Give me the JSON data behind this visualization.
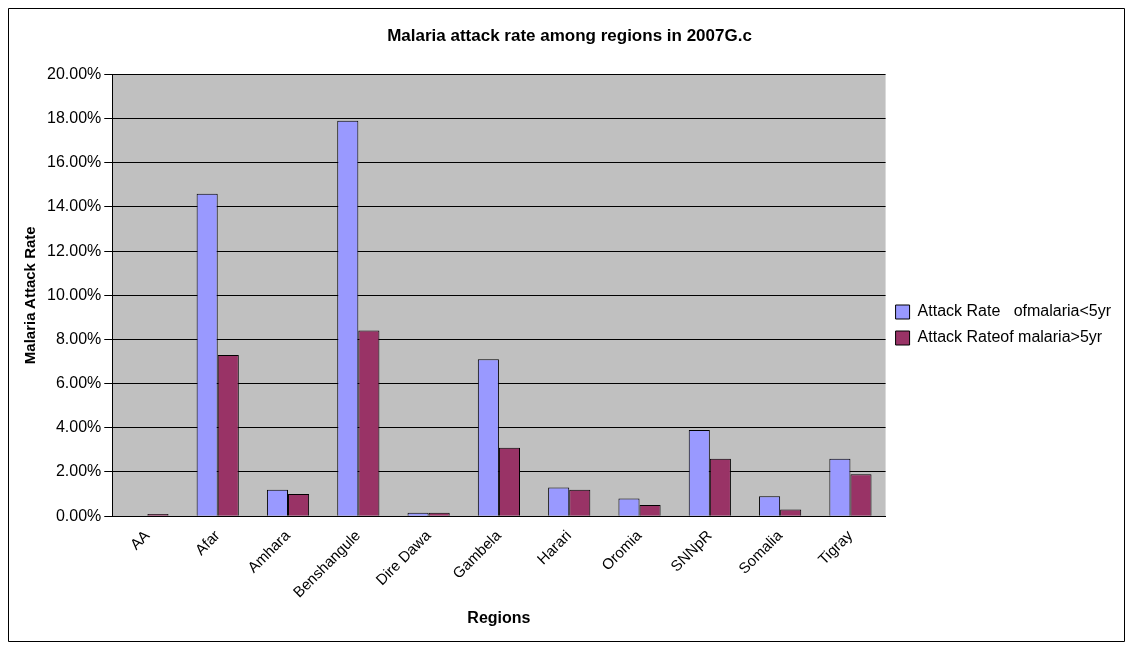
{
  "chart_data": {
    "type": "bar",
    "title": "Malaria attack rate among regions in 2007G.c",
    "xlabel": "Regions",
    "ylabel": "Malaria Attack Rate",
    "categories": [
      "AA",
      "Afar",
      "Amhara",
      "Benshangule",
      "Dire Dawa",
      "Gambela",
      "Harari",
      "Oromia",
      "SNNpR",
      "Somalia",
      "Tigray"
    ],
    "series": [
      {
        "name": "Attack Rate   ofmalaria<5yr",
        "color": "#9999ff",
        "values": [
          0,
          14.6,
          1.2,
          17.9,
          0.15,
          7.1,
          1.3,
          0.8,
          3.9,
          0.9,
          2.6
        ]
      },
      {
        "name": "Attack Rateof malaria>5yr",
        "color": "#993366",
        "values": [
          0.1,
          7.3,
          1.0,
          8.4,
          0.15,
          3.1,
          1.2,
          0.5,
          2.6,
          0.3,
          1.9
        ]
      }
    ],
    "ylim": [
      0,
      20
    ],
    "yticks": [
      {
        "value": 0,
        "label": "0.00%"
      },
      {
        "value": 2,
        "label": "2.00%"
      },
      {
        "value": 4,
        "label": "4.00%"
      },
      {
        "value": 6,
        "label": "6.00%"
      },
      {
        "value": 8,
        "label": "8.00%"
      },
      {
        "value": 10,
        "label": "10.00%"
      },
      {
        "value": 12,
        "label": "12.00%"
      },
      {
        "value": 14,
        "label": "14.00%"
      },
      {
        "value": 16,
        "label": "16.00%"
      },
      {
        "value": 18,
        "label": "18.00%"
      },
      {
        "value": 20,
        "label": "20.00%"
      }
    ],
    "grid": "y",
    "legend": "right"
  }
}
